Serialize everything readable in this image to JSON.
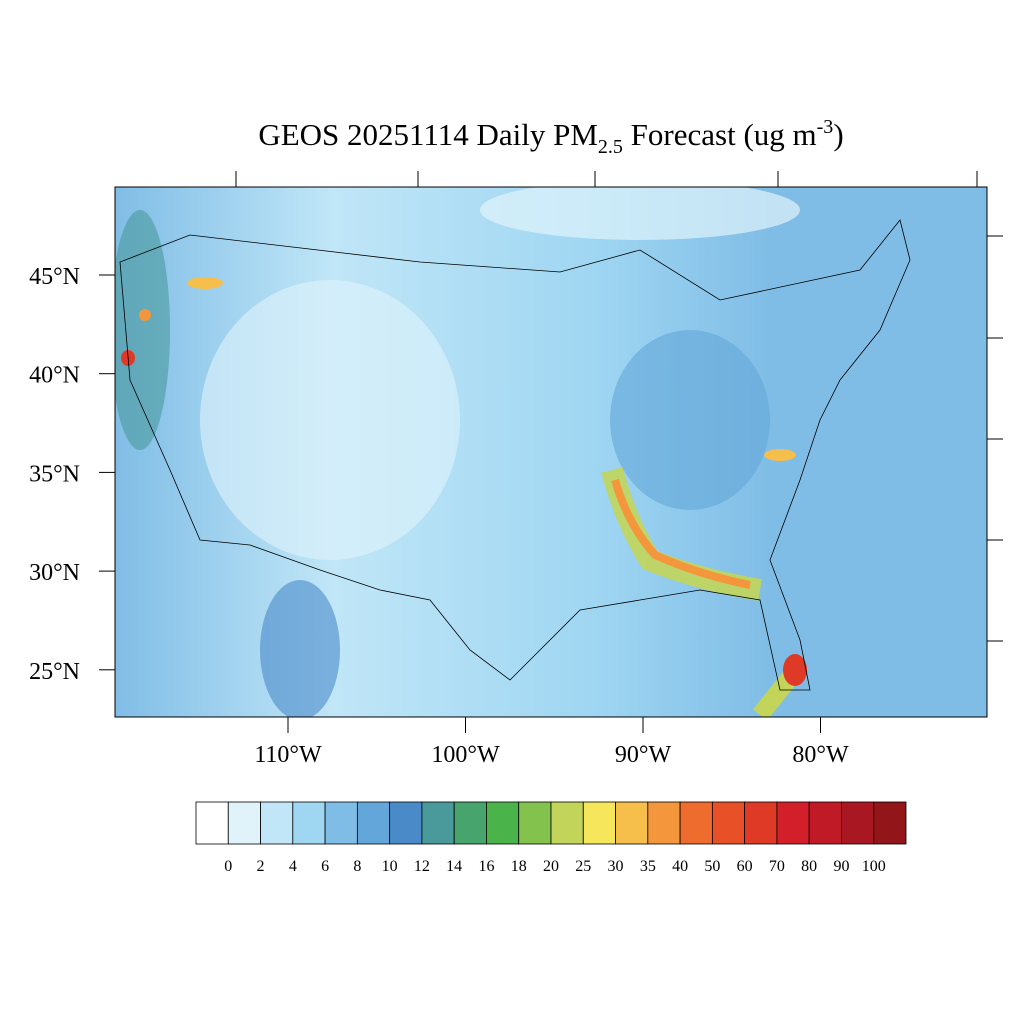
{
  "chart_data": {
    "type": "map",
    "title": {
      "main": "GEOS 20251114 Daily PM",
      "sub": "2.5",
      "mid": " Forecast (ug m",
      "sup": "-3",
      "end": ")"
    },
    "yticks": [
      {
        "value": 25,
        "label": "25°N"
      },
      {
        "value": 30,
        "label": "30°N"
      },
      {
        "value": 35,
        "label": "35°N"
      },
      {
        "value": 40,
        "label": "40°N"
      },
      {
        "value": 45,
        "label": "45°N"
      }
    ],
    "xticks": [
      {
        "value": -110,
        "label": "110°W"
      },
      {
        "value": -100,
        "label": "100°W"
      },
      {
        "value": -90,
        "label": "90°W"
      },
      {
        "value": -80,
        "label": "80°W"
      }
    ],
    "levels": [
      0,
      2,
      4,
      6,
      8,
      10,
      12,
      14,
      16,
      18,
      20,
      25,
      30,
      35,
      40,
      50,
      60,
      70,
      80,
      90,
      100
    ],
    "colors": [
      "#ffffff",
      "#e0f3fb",
      "#c0e6f7",
      "#9fd6f2",
      "#80bde6",
      "#63a6d9",
      "#4a8ac9",
      "#4a9a9c",
      "#46a46c",
      "#4ab34a",
      "#84c24e",
      "#c2d55a",
      "#f6e65c",
      "#f6be4a",
      "#f4963c",
      "#ef6c2f",
      "#e85128",
      "#de3a26",
      "#d21f2a",
      "#bf1a26",
      "#a91822",
      "#921519"
    ]
  }
}
